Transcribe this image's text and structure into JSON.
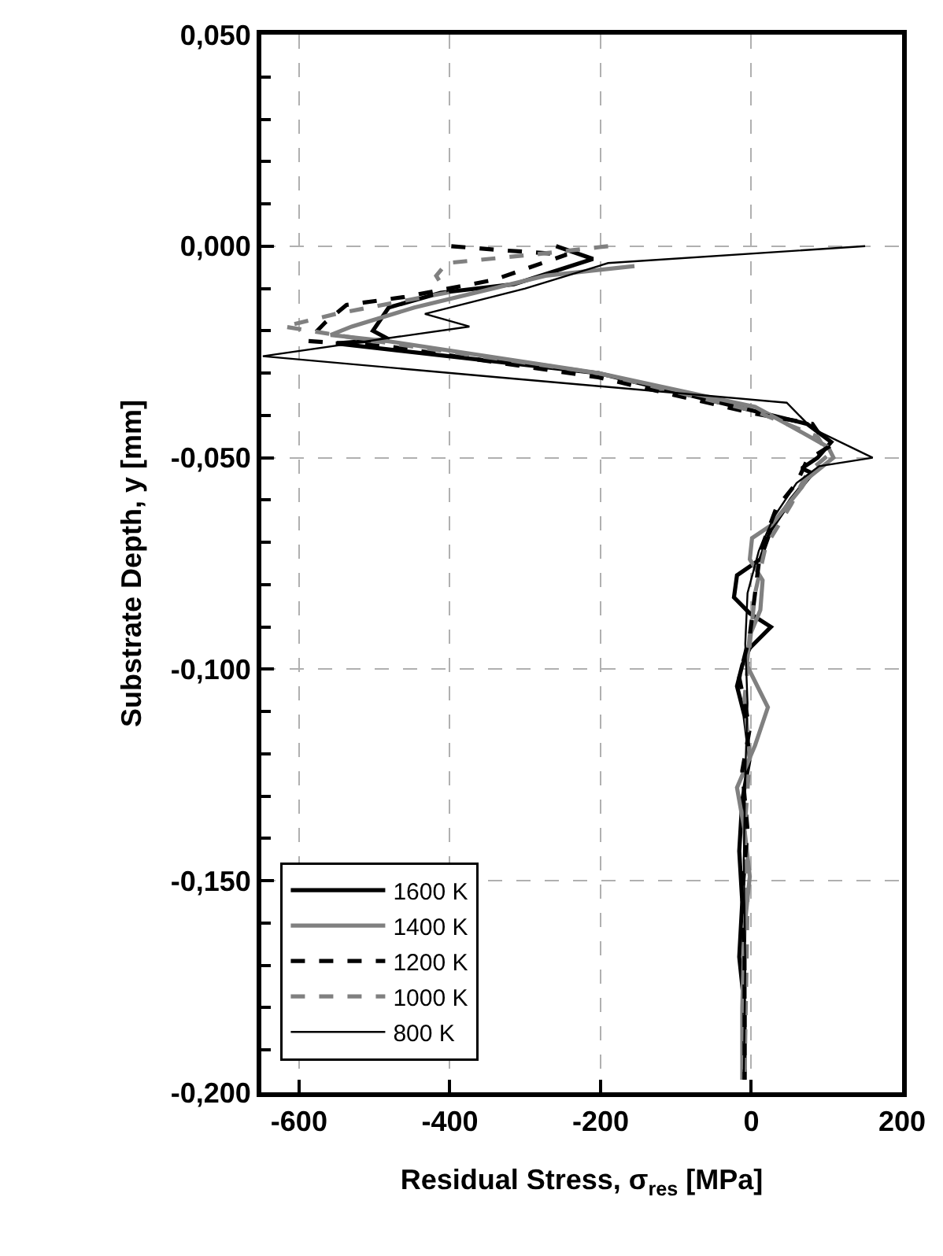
{
  "chart_data": {
    "type": "line",
    "xlabel": "Residual Stress, σ$_{res}$ [MPa]",
    "ylabel": "Substrate Depth, y [mm]",
    "xlim": [
      -650,
      200
    ],
    "xticks": [
      -600,
      -400,
      -200,
      0,
      200
    ],
    "ylim": [
      -0.2,
      0.05
    ],
    "yticks": [
      {
        "value": 0.05,
        "label": "0,050"
      },
      {
        "value": 0.0,
        "label": "0,000"
      },
      {
        "value": -0.05,
        "label": "-0,050"
      },
      {
        "value": -0.1,
        "label": "-0,100"
      },
      {
        "value": -0.15,
        "label": "-0,150"
      },
      {
        "value": -0.2,
        "label": "-0,200"
      }
    ],
    "grid": true,
    "legend": "bottom left",
    "marker": "none",
    "series": [
      {
        "name": "1600 K",
        "color": "#000000",
        "line_style": "solid",
        "x": [
          -259,
          -210,
          -315,
          -412,
          -481,
          -502,
          -481,
          -551,
          -203,
          5,
          74,
          106,
          88,
          67,
          81,
          53,
          26,
          12,
          -19,
          -23,
          -2,
          26,
          -2,
          -12,
          -19,
          -9,
          -2,
          -12,
          -16,
          -12,
          -16,
          -9,
          -9
        ],
        "values": [
          0.0,
          -0.003,
          -0.009,
          -0.011,
          -0.0145,
          -0.02,
          -0.022,
          -0.023,
          -0.03,
          -0.039,
          -0.042,
          -0.0463,
          -0.05,
          -0.0525,
          -0.0537,
          -0.0598,
          -0.067,
          -0.074,
          -0.0778,
          -0.083,
          -0.0868,
          -0.09,
          -0.095,
          -0.099,
          -0.104,
          -0.111,
          -0.121,
          -0.131,
          -0.143,
          -0.155,
          -0.168,
          -0.18,
          -0.197
        ]
      },
      {
        "name": "1400 K",
        "color": "#808080",
        "line_style": "solid",
        "x": [
          -155,
          -273,
          -447,
          -530,
          -558,
          -481,
          -203,
          5,
          47,
          102,
          109,
          74,
          67,
          26,
          1,
          -2,
          15,
          12,
          -2,
          -6,
          22,
          5,
          -19,
          -9,
          -2,
          -9,
          -12,
          -12
        ],
        "values": [
          -0.0047,
          -0.007,
          -0.0145,
          -0.019,
          -0.021,
          -0.0225,
          -0.03,
          -0.038,
          -0.042,
          -0.0475,
          -0.05,
          -0.055,
          -0.057,
          -0.066,
          -0.069,
          -0.074,
          -0.079,
          -0.086,
          -0.092,
          -0.099,
          -0.109,
          -0.118,
          -0.128,
          -0.138,
          -0.149,
          -0.161,
          -0.18,
          -0.197
        ]
      },
      {
        "name": "1200 K",
        "color": "#000000",
        "line_style": "dashed",
        "x": [
          -398,
          -328,
          -245,
          -342,
          -460,
          -537,
          -565,
          -589,
          -481,
          -203,
          5,
          81,
          102,
          74,
          60,
          33,
          12,
          5,
          -2,
          -16,
          -2,
          -12,
          -5,
          -12,
          -9,
          -9
        ],
        "values": [
          0.0,
          -0.001,
          -0.002,
          -0.008,
          -0.012,
          -0.0139,
          -0.018,
          -0.0224,
          -0.0237,
          -0.031,
          -0.0396,
          -0.042,
          -0.0475,
          -0.0506,
          -0.056,
          -0.062,
          -0.072,
          -0.082,
          -0.092,
          -0.102,
          -0.114,
          -0.124,
          -0.138,
          -0.153,
          -0.168,
          -0.197
        ]
      },
      {
        "name": "1000 K",
        "color": "#808080",
        "line_style": "dashed",
        "x": [
          -190,
          -290,
          -404,
          -418,
          -404,
          -551,
          -620,
          -516,
          -203,
          5,
          88,
          102,
          74,
          53,
          19,
          5,
          -2,
          -9,
          -2,
          -9,
          -5,
          -9
        ],
        "values": [
          0.0,
          -0.002,
          -0.004,
          -0.007,
          -0.011,
          -0.016,
          -0.019,
          -0.022,
          -0.03,
          -0.039,
          -0.045,
          -0.0494,
          -0.0537,
          -0.061,
          -0.071,
          -0.082,
          -0.094,
          -0.107,
          -0.121,
          -0.138,
          -0.155,
          -0.197
        ]
      },
      {
        "name": "800 K",
        "color": "#000000",
        "line_style": "solid",
        "x": [
          151,
          -190,
          -300,
          -433,
          -374,
          -648,
          -335,
          47,
          80,
          161,
          90,
          60,
          30,
          10,
          -5,
          -8,
          -5,
          -8,
          -10,
          -8,
          -10
        ],
        "values": [
          0.0,
          -0.004,
          -0.01,
          -0.016,
          -0.019,
          -0.026,
          -0.031,
          -0.037,
          -0.043,
          -0.05,
          -0.052,
          -0.056,
          -0.064,
          -0.072,
          -0.082,
          -0.094,
          -0.108,
          -0.125,
          -0.145,
          -0.17,
          -0.197
        ]
      }
    ]
  }
}
